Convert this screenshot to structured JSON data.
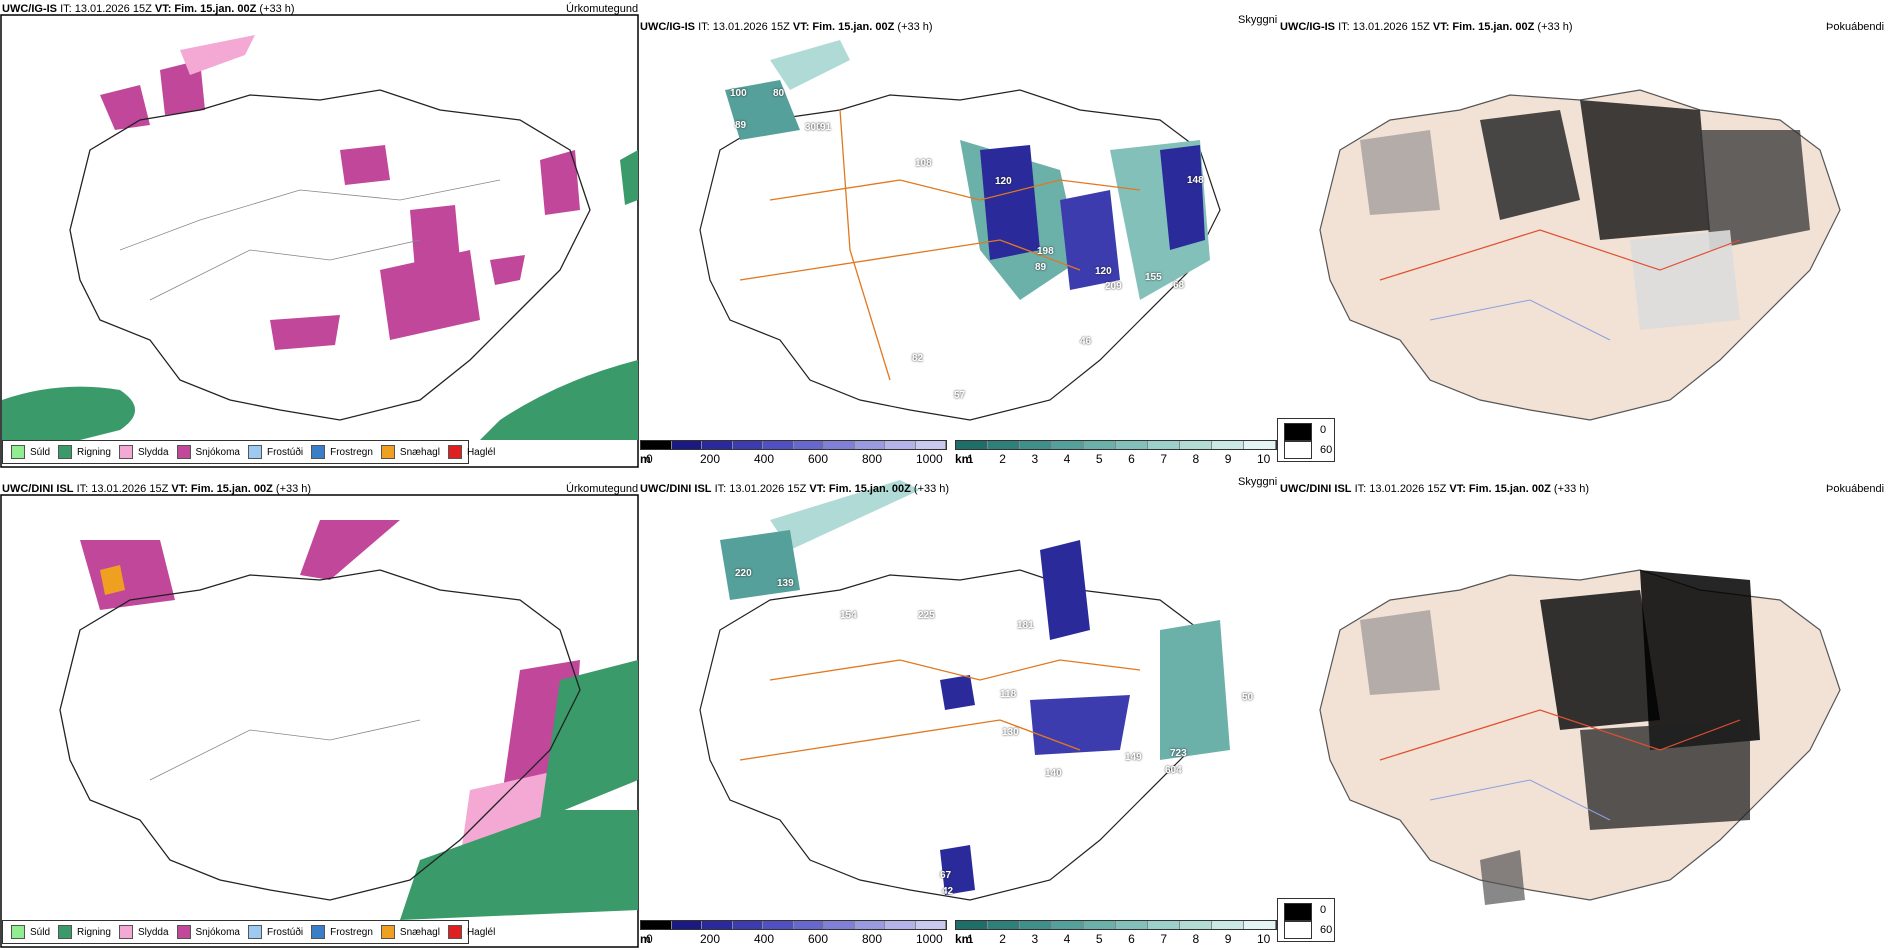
{
  "rows": [
    {
      "id": "top",
      "precip_panel": {
        "model": "UWC/IG-IS",
        "it": "IT: 13.01.2026 15Z",
        "vt": "VT: Fim. 15.jan. 00Z",
        "lead": "(+33 h)",
        "title": "Úrkomutegund"
      },
      "cloud_panel": {
        "model": "UWC/IG-IS",
        "it": "IT: 13.01.2026 15Z",
        "vt": "VT: Fim. 15.jan. 00Z",
        "lead": "(+33 h)",
        "title": "Skyggni",
        "labels": [
          "100",
          "80",
          "89",
          "300",
          "91",
          "108",
          "120",
          "148",
          "198",
          "89",
          "120",
          "155",
          "209",
          "68",
          "46",
          "82",
          "57"
        ]
      },
      "fog_panel": {
        "model": "UWC/IG-IS",
        "it": "IT: 13.01.2026 15Z",
        "vt": "VT: Fim. 15.jan. 00Z",
        "lead": "(+33 h)",
        "title": "Þokuábendi"
      }
    },
    {
      "id": "bottom",
      "precip_panel": {
        "model": "UWC/DINI ISL",
        "it": "IT: 13.01.2026 15Z",
        "vt": "VT: Fim. 15.jan. 00Z",
        "lead": "(+33 h)",
        "title": "Úrkomutegund"
      },
      "cloud_panel": {
        "model": "UWC/DINI ISL",
        "it": "IT: 13.01.2026 15Z",
        "vt": "VT: Fim. 15.jan. 00Z",
        "lead": "(+33 h)",
        "title": "Skyggni",
        "labels": [
          "220",
          "139",
          "154",
          "225",
          "181",
          "118",
          "130",
          "140",
          "149",
          "723",
          "604",
          "42",
          "67",
          "50"
        ]
      },
      "fog_panel": {
        "model": "UWC/DINI ISL",
        "it": "IT: 13.01.2026 15Z",
        "vt": "VT: Fim. 15.jan. 00Z",
        "lead": "(+33 h)",
        "title": "Þokuábendi"
      }
    }
  ],
  "precip_legend": [
    {
      "label": "Súld",
      "color": "#90ee90"
    },
    {
      "label": "Rigning",
      "color": "#3a9a6a"
    },
    {
      "label": "Slydda",
      "color": "#f4a8d4"
    },
    {
      "label": "Snjókoma",
      "color": "#c0479a"
    },
    {
      "label": "Frostúði",
      "color": "#9ec9f0"
    },
    {
      "label": "Frostregn",
      "color": "#3a7dc8"
    },
    {
      "label": "Snæhagl",
      "color": "#f0a020"
    },
    {
      "label": "Haglél",
      "color": "#e02020"
    }
  ],
  "cloud_base_bar": {
    "unit": "m",
    "ticks": [
      "0",
      "200",
      "400",
      "600",
      "800",
      "1000"
    ],
    "colors": [
      "#000000",
      "#1a1a80",
      "#2a2a9a",
      "#3c3cae",
      "#5050c0",
      "#6868cc",
      "#8080d6",
      "#9a9ae0",
      "#b4b4ea",
      "#cacaf0"
    ]
  },
  "visibility_bar": {
    "unit": "km",
    "ticks": [
      "1",
      "2",
      "3",
      "4",
      "5",
      "6",
      "7",
      "8",
      "9",
      "10"
    ],
    "colors": [
      "#1f6e6a",
      "#2f7f7a",
      "#3f8f8a",
      "#55a09a",
      "#6cb0aa",
      "#84c0ba",
      "#9cd0ca",
      "#b4dcd6",
      "#cce8e4",
      "#e4f4f2"
    ]
  },
  "fog_legend": {
    "values": [
      "0",
      "60"
    ]
  }
}
